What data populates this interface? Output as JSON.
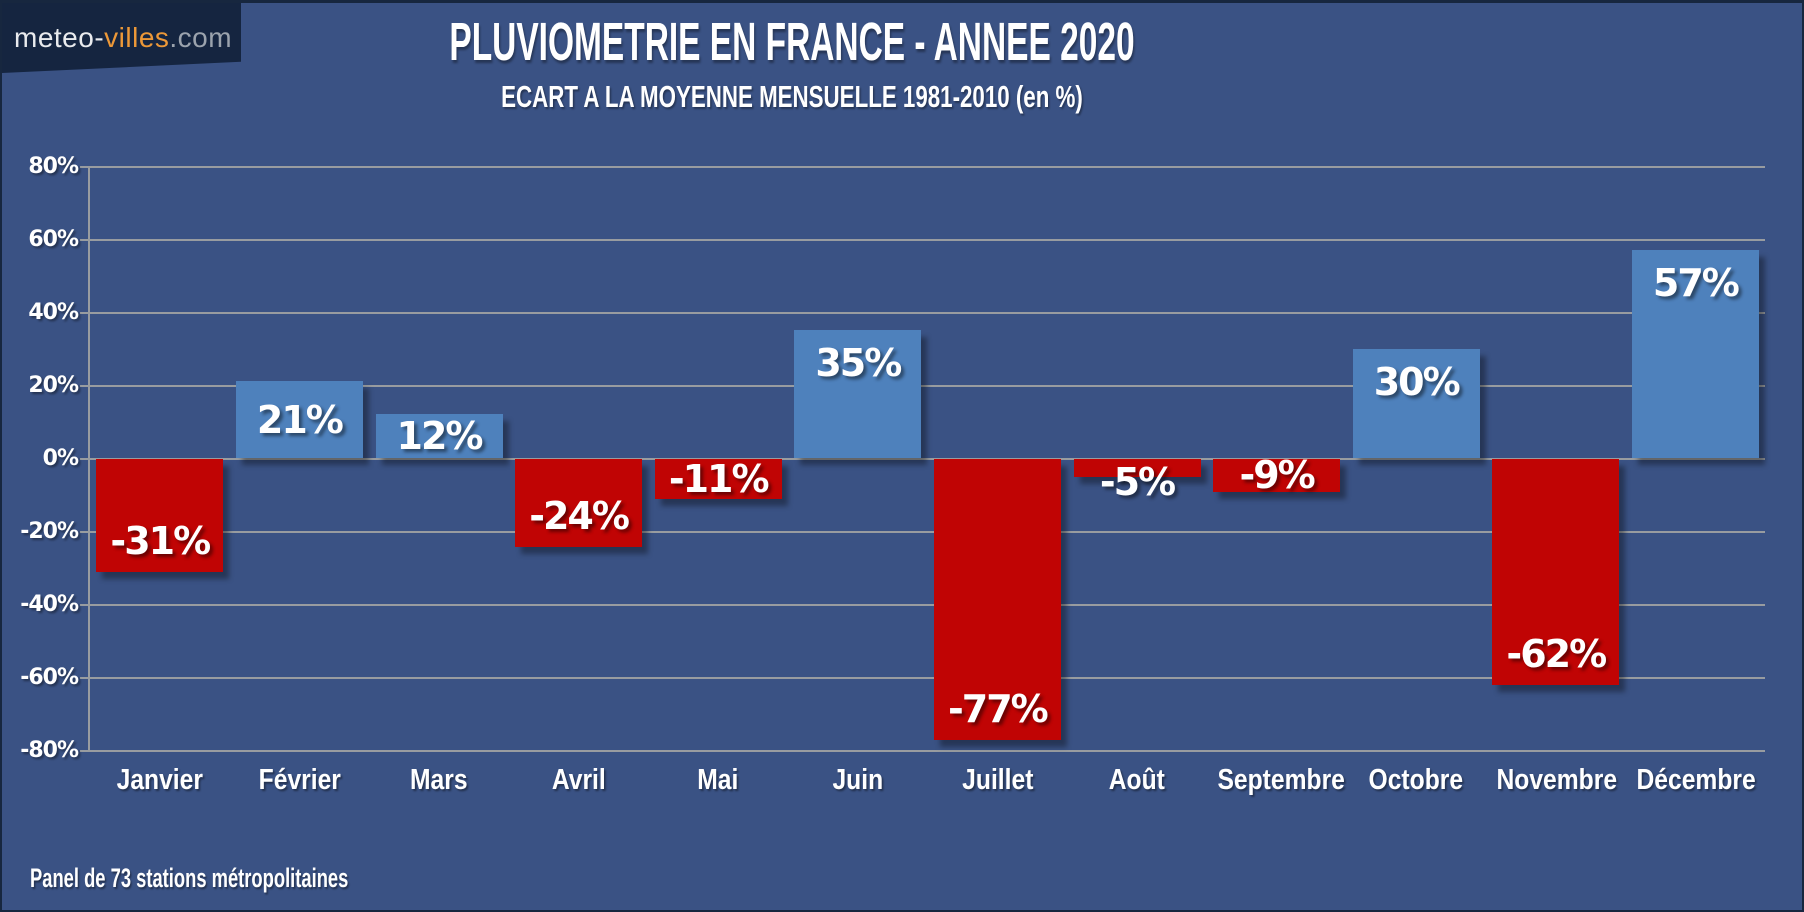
{
  "logo": {
    "part1": "meteo-",
    "part2": "villes",
    "part3": ".com"
  },
  "header": {
    "title": "PLUVIOMETRIE EN FRANCE - ANNEE 2020",
    "subtitle": "ECART A LA MOYENNE MENSUELLE 1981-2010 (en %)"
  },
  "footer": {
    "note": "Panel de 73 stations métropolitaines"
  },
  "colors": {
    "background": "#3A5284",
    "dark_navy": "#152540",
    "positive_bar": "#4E81BC",
    "negative_bar": "#C00404",
    "gridline": "#989CA0",
    "logo_orange": "#EC9838",
    "logo_gray": "#9BA3AD",
    "text": "#FFFFFF"
  },
  "chart_data": {
    "type": "bar",
    "title": "PLUVIOMETRIE EN FRANCE - ANNEE 2020",
    "subtitle": "ECART A LA MOYENNE MENSUELLE 1981-2010 (en %)",
    "categories": [
      "Janvier",
      "Février",
      "Mars",
      "Avril",
      "Mai",
      "Juin",
      "Juillet",
      "Août",
      "Septembre",
      "Octobre",
      "Novembre",
      "Décembre"
    ],
    "values": [
      -31,
      21,
      12,
      -24,
      -11,
      35,
      -77,
      -5,
      -9,
      30,
      -62,
      57
    ],
    "labels": [
      "-31%",
      "21%",
      "12%",
      "-24%",
      "-11%",
      "35%",
      "-77%",
      "-5%",
      "-9%",
      "30%",
      "-62%",
      "57%"
    ],
    "xlabel": "",
    "ylabel": "",
    "ylim": [
      -80,
      80
    ],
    "ytick_step": 20,
    "ytick_labels": [
      "80%",
      "60%",
      "40%",
      "20%",
      "0%",
      "-20%",
      "-40%",
      "-60%",
      "-80%"
    ],
    "grid": true,
    "legend": "none",
    "positive_color": "#4E81BC",
    "negative_color": "#C00404"
  }
}
